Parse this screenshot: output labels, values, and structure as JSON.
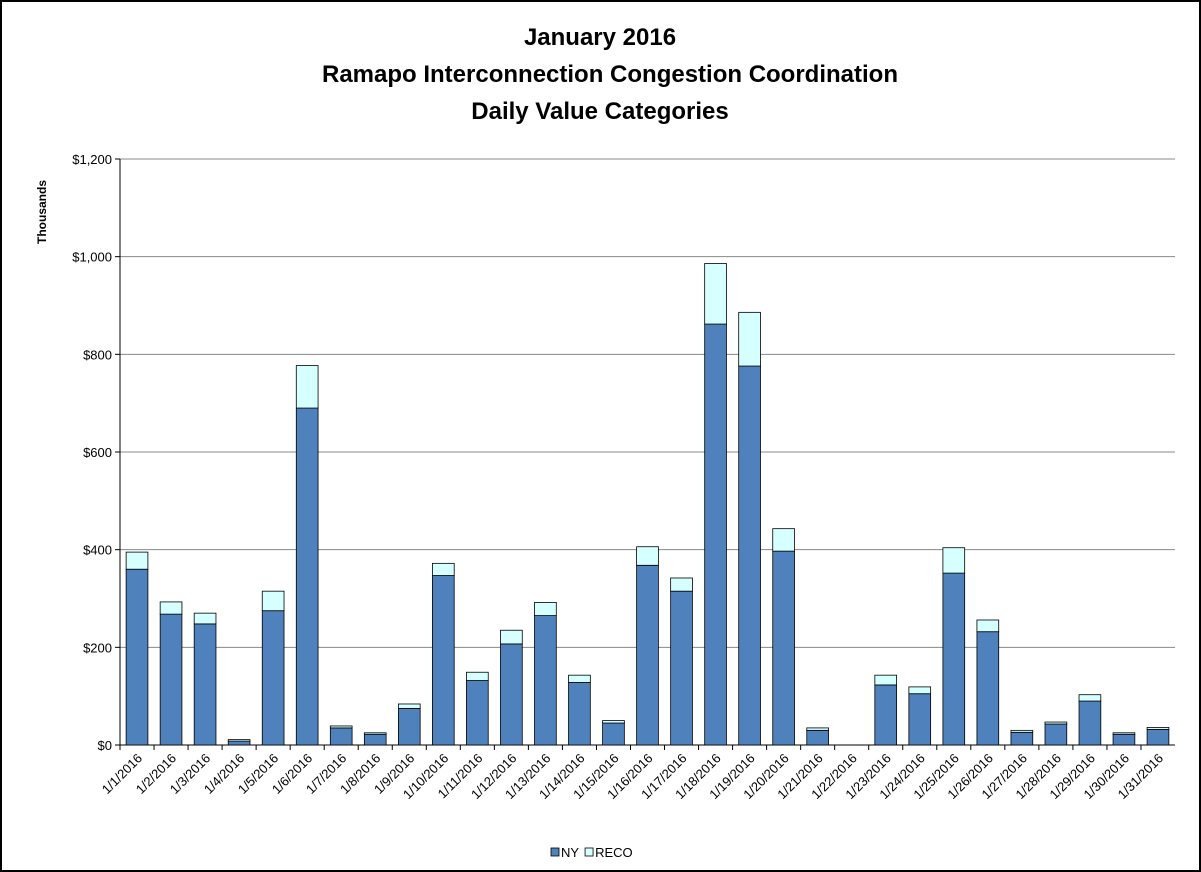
{
  "chart_data": {
    "type": "stacked_bar",
    "title": [
      "January 2016",
      "Ramapo Interconnection Congestion Coordination",
      "Daily Value Categories"
    ],
    "y_label": "Thousands",
    "categories": [
      "1/1/2016",
      "1/2/2016",
      "1/3/2016",
      "1/4/2016",
      "1/5/2016",
      "1/6/2016",
      "1/7/2016",
      "1/8/2016",
      "1/9/2016",
      "1/10/2016",
      "1/11/2016",
      "1/12/2016",
      "1/13/2016",
      "1/14/2016",
      "1/15/2016",
      "1/16/2016",
      "1/17/2016",
      "1/18/2016",
      "1/19/2016",
      "1/20/2016",
      "1/21/2016",
      "1/22/2016",
      "1/23/2016",
      "1/24/2016",
      "1/25/2016",
      "1/26/2016",
      "1/27/2016",
      "1/28/2016",
      "1/29/2016",
      "1/30/2016",
      "1/31/2016"
    ],
    "series": [
      {
        "name": "NY",
        "color": "#4f81bd",
        "values": [
          360,
          268,
          248,
          8,
          275,
          690,
          35,
          22,
          75,
          347,
          132,
          207,
          265,
          128,
          45,
          368,
          315,
          862,
          776,
          397,
          30,
          0,
          123,
          105,
          352,
          232,
          26,
          43,
          90,
          22,
          32
        ]
      },
      {
        "name": "RECO",
        "color": "#d6ffff",
        "values": [
          35,
          25,
          22,
          3,
          40,
          87,
          4,
          3,
          9,
          25,
          17,
          28,
          27,
          15,
          5,
          38,
          27,
          124,
          110,
          46,
          5,
          0,
          20,
          14,
          52,
          24,
          4,
          4,
          13,
          3,
          4
        ]
      }
    ],
    "ylim": [
      0,
      1200
    ],
    "yticks": [
      {
        "value": 0,
        "label": "$0"
      },
      {
        "value": 200,
        "label": "$200"
      },
      {
        "value": 400,
        "label": "$400"
      },
      {
        "value": 600,
        "label": "$600"
      },
      {
        "value": 800,
        "label": "$800"
      },
      {
        "value": 1000,
        "label": "$1,000"
      },
      {
        "value": 1200,
        "label": "$1,200"
      }
    ],
    "grid": true,
    "legend": "bottom"
  }
}
